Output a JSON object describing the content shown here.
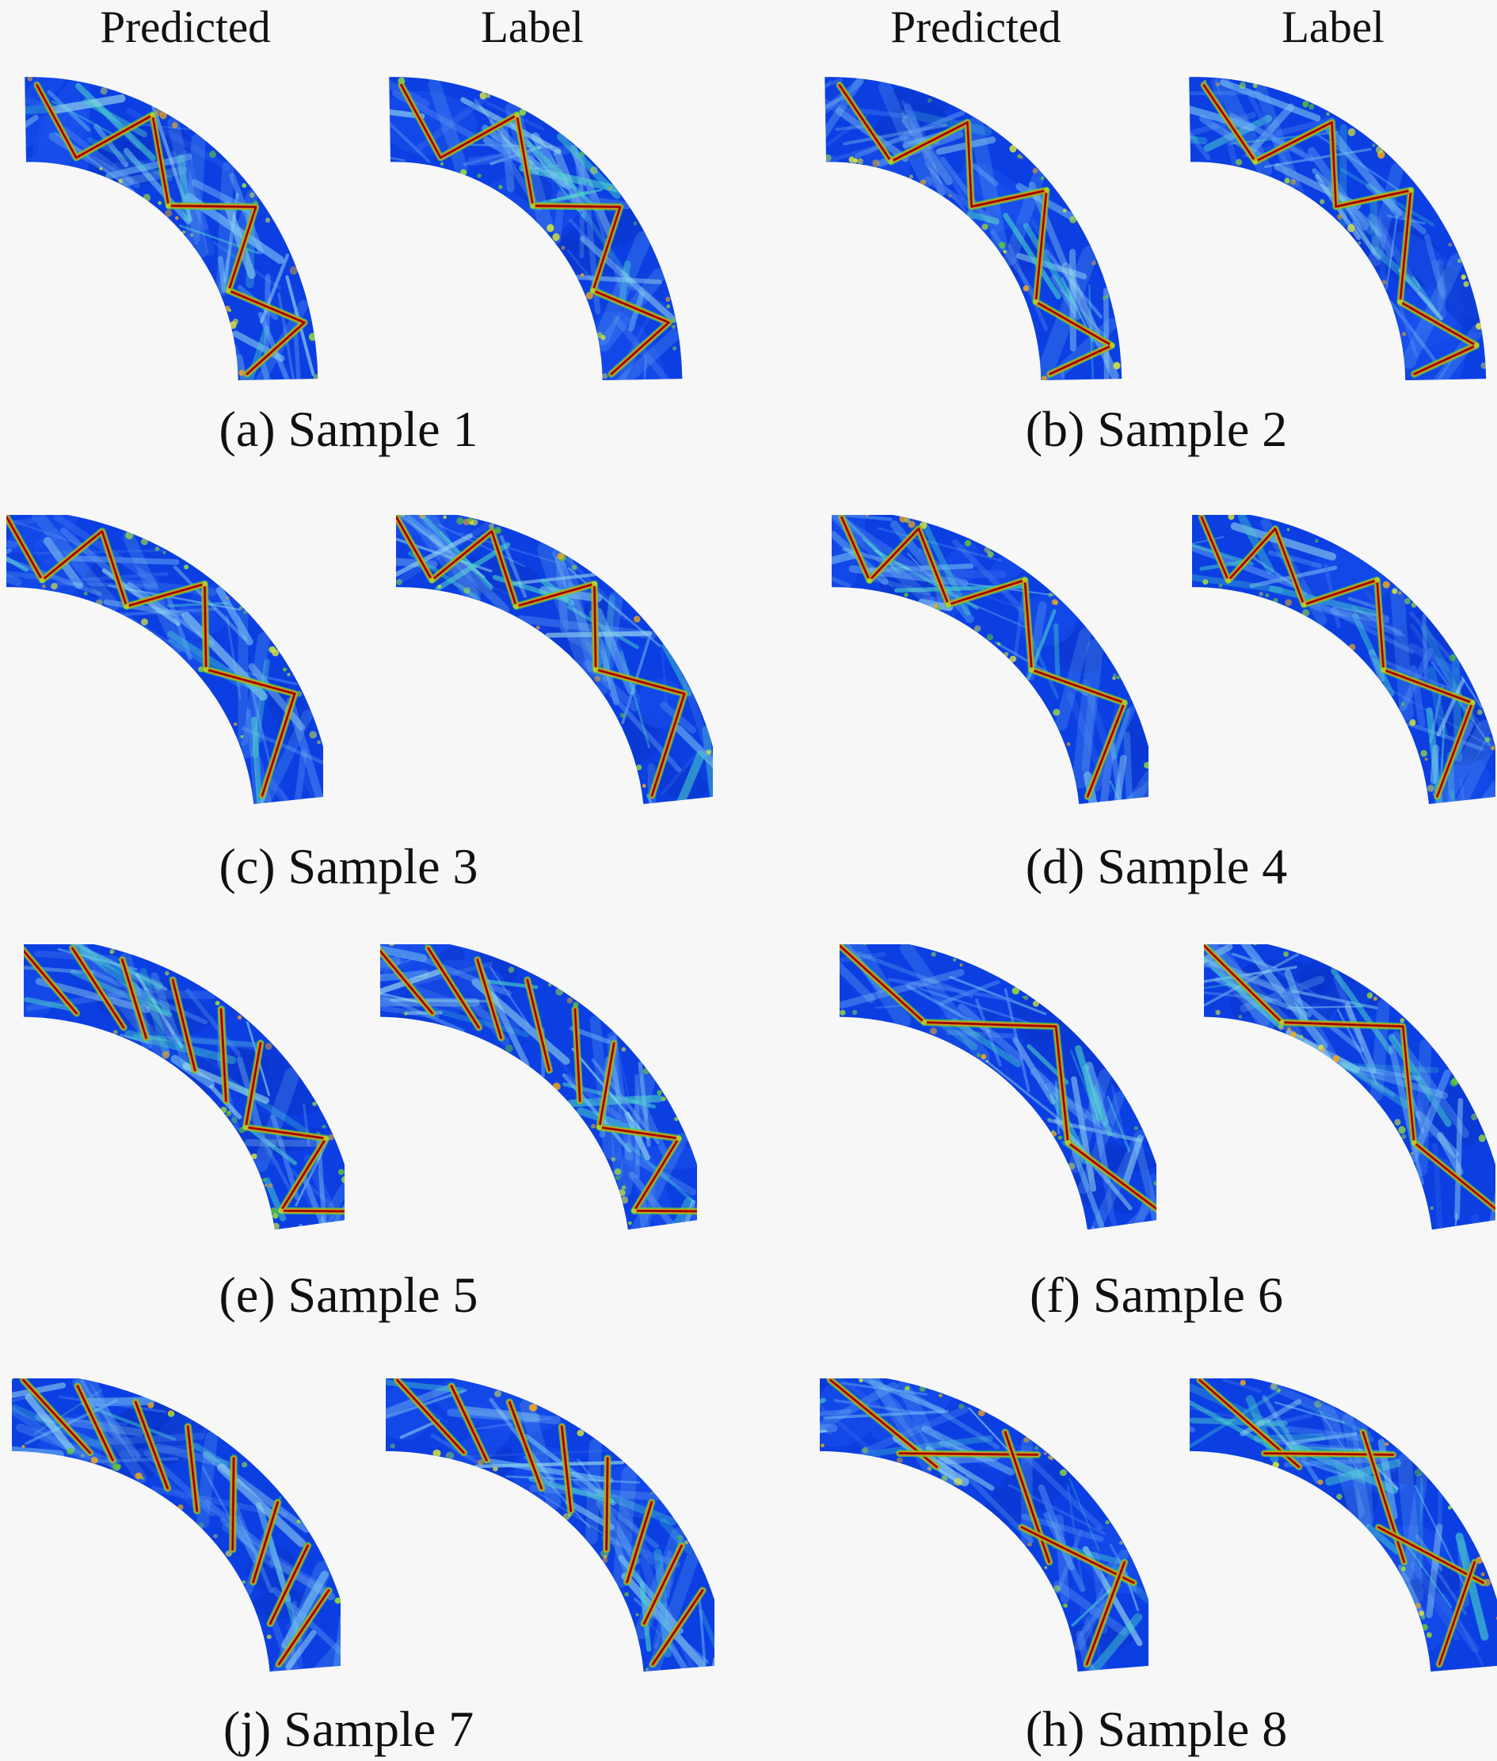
{
  "figure": {
    "background": "#f7f7f7",
    "text_color": "#111111",
    "column_headers": [
      "Predicted",
      "Label",
      "Predicted",
      "Label"
    ],
    "samples": [
      {
        "caption": "(a) Sample 1",
        "seed": 3,
        "style": "zigzag",
        "step": [
          10,
          15
        ],
        "grow": false
      },
      {
        "caption": "(b) Sample 2",
        "seed": 8,
        "style": "zigzag",
        "step": [
          9,
          19
        ],
        "grow": false
      },
      {
        "caption": "(c) Sample 3",
        "seed": 14,
        "style": "zigzag",
        "step": [
          7,
          19
        ],
        "grow": true
      },
      {
        "caption": "(d) Sample 4",
        "seed": 21,
        "style": "zigzag",
        "step": [
          7,
          21
        ],
        "grow": true
      },
      {
        "caption": "(e) Sample 5",
        "seed": 27,
        "style": "mixed",
        "step": [
          9,
          14
        ],
        "chords": 5
      },
      {
        "caption": "(f) Sample 6",
        "seed": 34,
        "style": "zigzag",
        "step": [
          15,
          26
        ],
        "grow": false
      },
      {
        "caption": "(j) Sample 7",
        "seed": 41,
        "style": "chords",
        "chords": 8
      },
      {
        "caption": "(h) Sample 8",
        "seed": 55,
        "style": "chords",
        "chords": 5,
        "cross": true
      }
    ],
    "colormap": {
      "base": "#0b3fe2",
      "deep": "#0834c8",
      "bright": "#1c55f0",
      "streaks": [
        "#3f74ee",
        "#5d9cf3",
        "#7cc8f2",
        "#a6e6ee",
        "#4ad6c9"
      ],
      "speckles": [
        "#5ec832",
        "#9ade3a",
        "#d9e63a",
        "#f0a81c"
      ],
      "ray_fringe": "#62c838",
      "ray_mid": "#f09c10",
      "ray_core": "#cc1800",
      "ray_dark": "#7a0a00"
    }
  }
}
